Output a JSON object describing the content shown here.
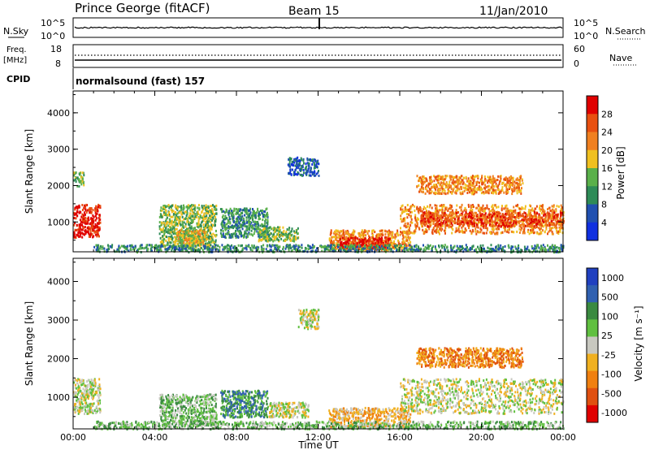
{
  "header": {
    "station": "Prince George (fitACF)",
    "beam": "Beam 15",
    "date": "11/Jan/2010"
  },
  "status_panels": {
    "nsky_label": "N.Sky",
    "nsearch_label": "N.Search",
    "nsky_ticks": [
      "10^5",
      "10^0"
    ],
    "nsearch_ticks": [
      "10^5",
      "10^0"
    ],
    "freq_label_1": "Freq.",
    "freq_label_2": "[MHz]",
    "freq_ticks": [
      "18",
      "8"
    ],
    "nave_label": "Nave",
    "nave_ticks": [
      "60",
      "0"
    ],
    "cpid_label": "CPID",
    "cpid_text": "normalsound (fast) 157"
  },
  "colors": {
    "power_scale": [
      "#1030e0",
      "#2050b0",
      "#2e8b57",
      "#5ab04a",
      "#f0c020",
      "#f08020",
      "#e85010",
      "#e00000"
    ],
    "velocity_scale": [
      "#2040c0",
      "#3060b0",
      "#3a8a40",
      "#60c040",
      "#c8c8c0",
      "#f0b020",
      "#f08010",
      "#e05010",
      "#e00000"
    ]
  },
  "chart_data": [
    {
      "type": "heatmap",
      "name": "power",
      "ylabel": "Slant Range [km]",
      "xlabel": "",
      "ylim": [
        180,
        4600
      ],
      "xlim": [
        0,
        24
      ],
      "yticks": [
        "1000",
        "2000",
        "3000",
        "4000"
      ],
      "colorbar_label": "Power [dB]",
      "colorbar_ticks": [
        "4",
        "8",
        "12",
        "16",
        "20",
        "24",
        "28"
      ],
      "regions": [
        {
          "t0": 0.0,
          "t1": 1.3,
          "r0": 600,
          "r1": 1500,
          "level": 7
        },
        {
          "t0": 0.0,
          "t1": 0.5,
          "r0": 2000,
          "r1": 2400,
          "level": 3
        },
        {
          "t0": 4.2,
          "t1": 7.0,
          "r0": 300,
          "r1": 1500,
          "level": 3
        },
        {
          "t0": 5.0,
          "t1": 6.5,
          "r0": 400,
          "r1": 800,
          "level": 4
        },
        {
          "t0": 7.2,
          "t1": 9.5,
          "r0": 600,
          "r1": 1400,
          "level": 2
        },
        {
          "t0": 9.0,
          "t1": 11.0,
          "r0": 500,
          "r1": 900,
          "level": 3
        },
        {
          "t0": 12.5,
          "t1": 16.5,
          "r0": 250,
          "r1": 800,
          "level": 5
        },
        {
          "t0": 13.0,
          "t1": 15.5,
          "r0": 300,
          "r1": 600,
          "level": 7
        },
        {
          "t0": 16.0,
          "t1": 24.0,
          "r0": 700,
          "r1": 1500,
          "level": 5
        },
        {
          "t0": 17.0,
          "t1": 24.0,
          "r0": 900,
          "r1": 1300,
          "level": 6
        },
        {
          "t0": 16.8,
          "t1": 22.0,
          "r0": 1800,
          "r1": 2300,
          "level": 5
        },
        {
          "t0": 10.5,
          "t1": 12.0,
          "r0": 2300,
          "r1": 2800,
          "level": 1
        },
        {
          "t0": 1.0,
          "t1": 24.0,
          "r0": 200,
          "r1": 400,
          "level": 2
        }
      ]
    },
    {
      "type": "heatmap",
      "name": "velocity",
      "ylabel": "Slant Range [km]",
      "xlabel": "Time UT",
      "ylim": [
        180,
        4600
      ],
      "xlim": [
        0,
        24
      ],
      "xticks": [
        "00:00",
        "04:00",
        "08:00",
        "12:00",
        "16:00",
        "20:00",
        "00:00"
      ],
      "yticks": [
        "1000",
        "2000",
        "3000",
        "4000"
      ],
      "colorbar_label": "Velocity [m s⁻¹]",
      "colorbar_ticks": [
        "1000",
        "500",
        "100",
        "25",
        "-25",
        "-100",
        "-500",
        "-1000"
      ],
      "regions": [
        {
          "t0": 0.0,
          "t1": 1.3,
          "r0": 600,
          "r1": 1500,
          "level": 4
        },
        {
          "t0": 4.2,
          "t1": 7.0,
          "r0": 300,
          "r1": 1100,
          "level": 3
        },
        {
          "t0": 7.2,
          "t1": 9.5,
          "r0": 500,
          "r1": 1200,
          "level": 2
        },
        {
          "t0": 9.5,
          "t1": 11.5,
          "r0": 500,
          "r1": 900,
          "level": 4
        },
        {
          "t0": 11.0,
          "t1": 12.0,
          "r0": 2800,
          "r1": 3300,
          "level": 4
        },
        {
          "t0": 12.5,
          "t1": 16.5,
          "r0": 250,
          "r1": 750,
          "level": 5
        },
        {
          "t0": 16.0,
          "t1": 24.0,
          "r0": 600,
          "r1": 1500,
          "level": 4
        },
        {
          "t0": 16.8,
          "t1": 22.0,
          "r0": 1800,
          "r1": 2300,
          "level": 6
        },
        {
          "t0": 1.0,
          "t1": 24.0,
          "r0": 200,
          "r1": 400,
          "level": 3
        }
      ]
    }
  ]
}
